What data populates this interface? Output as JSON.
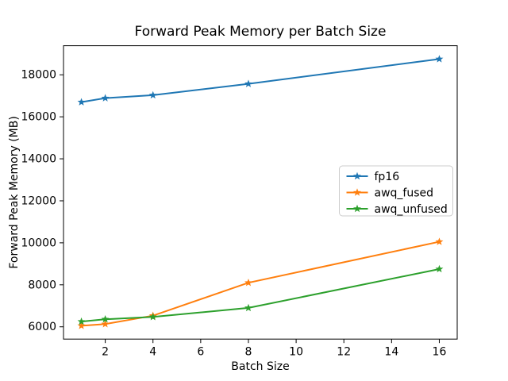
{
  "figure": {
    "background": "#ffffff",
    "spine_color": "#000000",
    "text_color": "#000000",
    "legend_border_color": "#cccccc",
    "legend_background": "#ffffff"
  },
  "chart_data": {
    "type": "line",
    "title": "Forward Peak Memory per Batch Size",
    "xlabel": "Batch Size",
    "ylabel": "Forward Peak Memory (MB)",
    "x": [
      1,
      2,
      4,
      8,
      16
    ],
    "series": [
      {
        "name": "fp16",
        "color": "#1f77b4",
        "marker": "star",
        "values": [
          16700,
          16890,
          17030,
          17570,
          18750
        ]
      },
      {
        "name": "awq_fused",
        "color": "#ff7f0e",
        "marker": "star",
        "values": [
          6050,
          6130,
          6530,
          8100,
          10050
        ]
      },
      {
        "name": "awq_unfused",
        "color": "#2ca02c",
        "marker": "star",
        "values": [
          6250,
          6360,
          6470,
          6900,
          8750
        ]
      }
    ],
    "xticks": [
      2,
      4,
      6,
      8,
      10,
      12,
      14,
      16
    ],
    "yticks": [
      6000,
      8000,
      10000,
      12000,
      14000,
      16000,
      18000
    ],
    "xlim": [
      0.25,
      16.75
    ],
    "ylim": [
      5415,
      19385
    ],
    "grid": false,
    "legend_position": "center-right"
  }
}
